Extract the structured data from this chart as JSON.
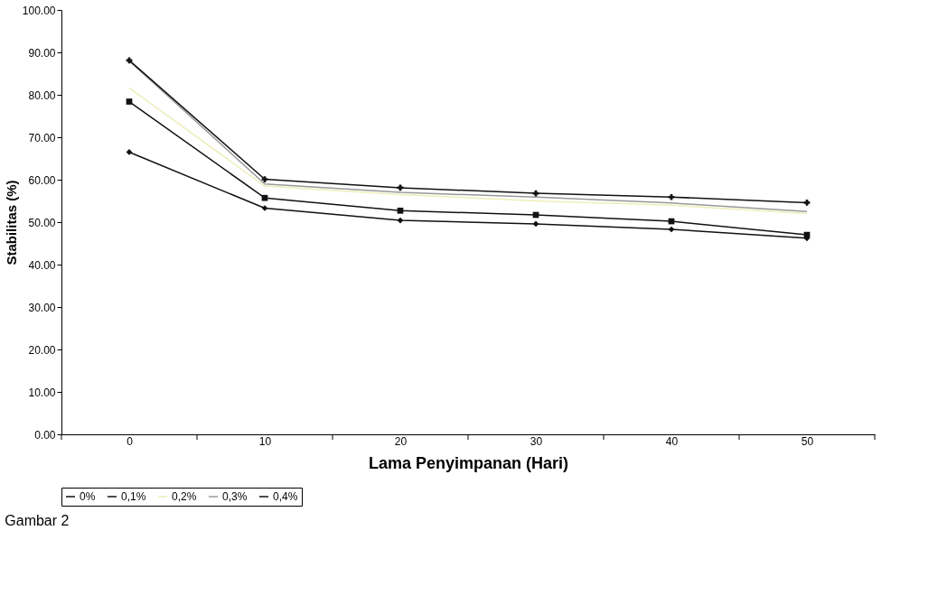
{
  "chart_data": {
    "type": "line",
    "xlabel": "Lama Penyimpanan (Hari)",
    "ylabel": "Stabilitas (%)",
    "categories": [
      "0",
      "10",
      "20",
      "30",
      "40",
      "50"
    ],
    "series": [
      {
        "name": "0%",
        "color": "#111111",
        "marker": "diamond",
        "values": [
          66.5,
          53.3,
          50.4,
          49.6,
          48.3,
          46.2
        ]
      },
      {
        "name": "0,1%",
        "color": "#111111",
        "marker": "square",
        "values": [
          78.4,
          55.7,
          52.7,
          51.7,
          50.2,
          47.0
        ]
      },
      {
        "name": "0,2%",
        "color": "#eeeebb",
        "marker": "none",
        "values": [
          81.6,
          58.5,
          56.5,
          55.0,
          54.0,
          52.0
        ]
      },
      {
        "name": "0,3%",
        "color": "#999999",
        "marker": "none",
        "values": [
          88.0,
          59.0,
          57.0,
          55.9,
          54.5,
          52.5
        ]
      },
      {
        "name": "0,4%",
        "color": "#111111",
        "marker": "cross",
        "values": [
          88.1,
          60.1,
          58.1,
          56.8,
          55.9,
          54.6
        ]
      }
    ],
    "ylim": [
      0,
      100
    ],
    "yticks": [
      {
        "value": 0,
        "label": "0.00"
      },
      {
        "value": 10,
        "label": "10.00"
      },
      {
        "value": 20,
        "label": "20.00"
      },
      {
        "value": 30,
        "label": "30.00"
      },
      {
        "value": 40,
        "label": "40.00"
      },
      {
        "value": 50,
        "label": "50.00"
      },
      {
        "value": 60,
        "label": "60.00"
      },
      {
        "value": 70,
        "label": "70.00"
      },
      {
        "value": 80,
        "label": "80.00"
      },
      {
        "value": 90,
        "label": "90.00"
      },
      {
        "value": 100,
        "label": "100.00"
      }
    ],
    "grid": false,
    "legend": "bottom",
    "annotations": [
      "Gambar 2"
    ]
  }
}
